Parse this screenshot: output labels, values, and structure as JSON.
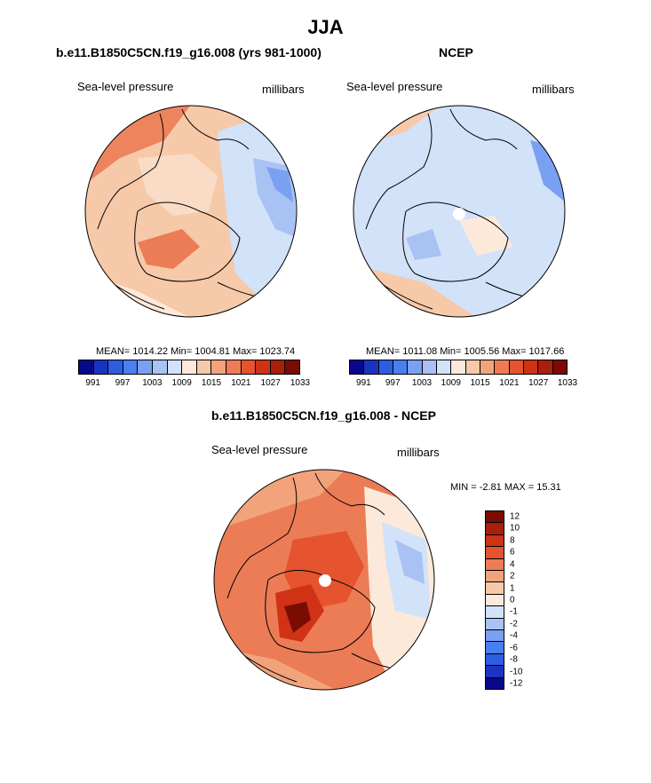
{
  "title": "JJA",
  "panels": {
    "model": {
      "heading": "b.e11.B1850C5CN.f19_g16.008 (yrs 981-1000)",
      "field": "Sea-level pressure",
      "units": "millibars",
      "stats": "MEAN= 1014.22  Min= 1004.81  Max= 1023.74"
    },
    "obs": {
      "heading": "NCEP",
      "field": "Sea-level pressure",
      "units": "millibars",
      "stats": "MEAN= 1011.08  Min= 1005.56  Max= 1017.66"
    },
    "diff": {
      "heading": "b.e11.B1850C5CN.f19_g16.008 - NCEP",
      "field": "Sea-level pressure",
      "units": "millibars",
      "stats": "MIN =  -2.81 MAX =  15.31"
    }
  },
  "colorbar_abs": {
    "colors": [
      "#08088a",
      "#1c33c2",
      "#2e5ee0",
      "#4a7ff0",
      "#7aa0f2",
      "#a8c2f4",
      "#d2e2f8",
      "#fde9da",
      "#f6c9a9",
      "#f2a37c",
      "#ec7c55",
      "#e5542f",
      "#cf3214",
      "#a8200c",
      "#7a0c04"
    ],
    "labels": [
      "991",
      "997",
      "1003",
      "1009",
      "1015",
      "1021",
      "1027",
      "1033"
    ]
  },
  "colorbar_diff": {
    "colors": [
      "#7a0c04",
      "#a8200c",
      "#cf3214",
      "#e5542f",
      "#ec7c55",
      "#f2a37c",
      "#f6c9a9",
      "#fde9da",
      "#d2e2f8",
      "#a8c2f4",
      "#7aa0f2",
      "#4a7ff0",
      "#2e5ee0",
      "#1c33c2",
      "#08088a"
    ],
    "labels": [
      "12",
      "10",
      "8",
      "6",
      "4",
      "2",
      "1",
      "0",
      "-1",
      "-2",
      "-4",
      "-6",
      "-8",
      "-10",
      "-12"
    ]
  },
  "map_colors": {
    "ocean_fill_model": "#f6c9a9",
    "ocean_fill_obs": "#d2e2f8",
    "ocean_fill_diff": "#ec7c55",
    "pole_marker": "#ffffff",
    "coast": "#000000"
  }
}
